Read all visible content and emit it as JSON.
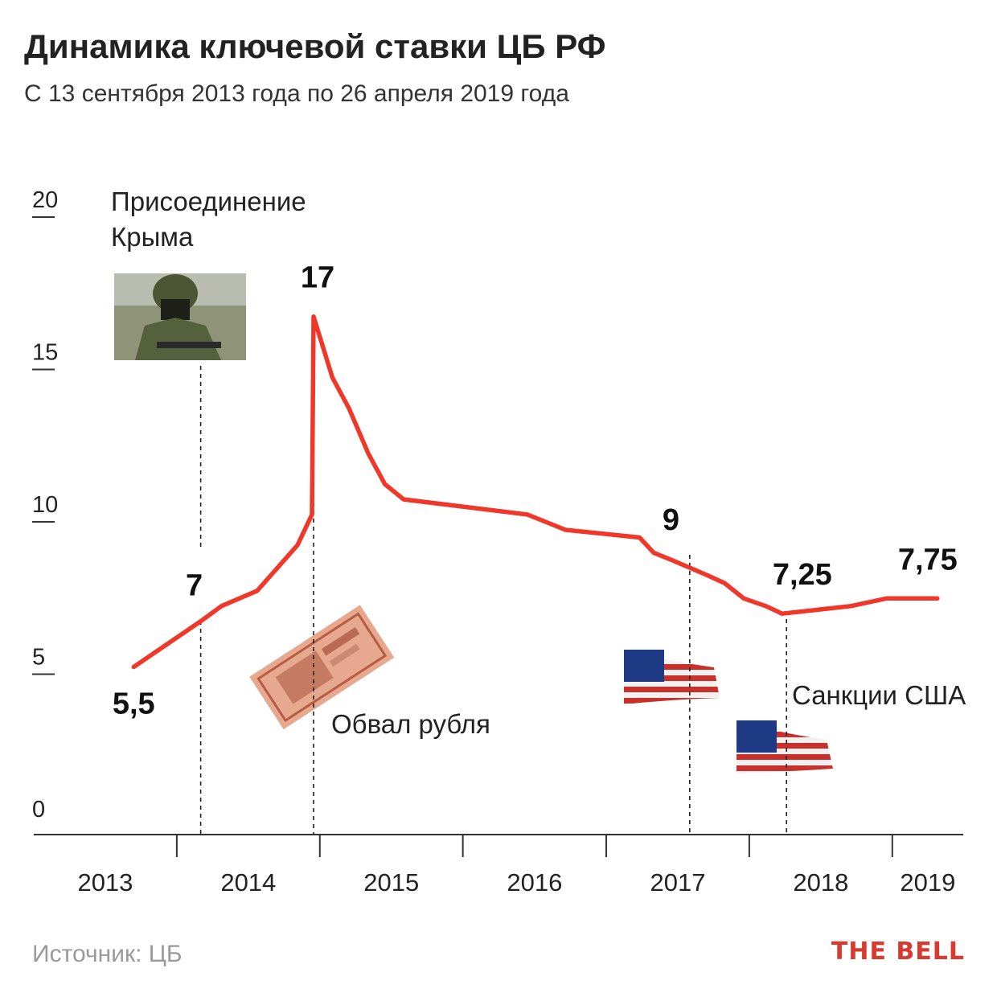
{
  "header": {
    "title": "Динамика ключевой ставки ЦБ РФ",
    "subtitle": "С 13 сентября 2013 года по 26 апреля 2019 года"
  },
  "footer": {
    "source": "Источник: ЦБ",
    "brand": "THE BELL"
  },
  "colors": {
    "line": "#f0382a",
    "brand": "#d73a2f",
    "source": "#9a9a9a"
  },
  "chart_data": {
    "type": "line",
    "title": "Динамика ключевой ставки ЦБ РФ",
    "subtitle": "С 13 сентября 2013 года по 26 апреля 2019 года",
    "xlabel": "",
    "ylabel": "",
    "ylim": [
      0,
      20
    ],
    "yticks": [
      "0",
      "5",
      "10",
      "15",
      "20"
    ],
    "xlim": [
      "2013-01-01",
      "2019-07-01"
    ],
    "xticks": [
      "2013",
      "2014",
      "2015",
      "2016",
      "2017",
      "2018",
      "2019"
    ],
    "grid": false,
    "series": [
      {
        "color": "#f0382a",
        "points": [
          [
            "2013-09-13",
            5.5
          ],
          [
            "2014-03-03",
            7.0
          ],
          [
            "2014-04-25",
            7.5
          ],
          [
            "2014-07-25",
            8.0
          ],
          [
            "2014-11-05",
            9.5
          ],
          [
            "2014-12-12",
            10.5
          ],
          [
            "2014-12-16",
            17.0
          ],
          [
            "2015-02-02",
            15.0
          ],
          [
            "2015-03-16",
            14.0
          ],
          [
            "2015-05-05",
            12.5
          ],
          [
            "2015-06-16",
            11.5
          ],
          [
            "2015-08-03",
            11.0
          ],
          [
            "2016-06-14",
            10.5
          ],
          [
            "2016-09-19",
            10.0
          ],
          [
            "2017-03-27",
            9.75
          ],
          [
            "2017-05-02",
            9.25
          ],
          [
            "2017-06-19",
            9.0
          ],
          [
            "2017-09-18",
            8.5
          ],
          [
            "2017-10-30",
            8.25
          ],
          [
            "2017-12-18",
            7.75
          ],
          [
            "2018-02-12",
            7.5
          ],
          [
            "2018-03-26",
            7.25
          ],
          [
            "2018-09-17",
            7.5
          ],
          [
            "2018-12-17",
            7.75
          ],
          [
            "2019-04-26",
            7.75
          ]
        ]
      }
    ],
    "value_labels": [
      "5,5",
      "7",
      "17",
      "9",
      "7,25",
      "7,75"
    ],
    "annotations": [
      {
        "text_lines": [
          "Присоединение",
          "Крыма"
        ],
        "date": "2014-03-03",
        "image": "soldier-photo"
      },
      {
        "text_lines": [
          "Обвал рубля"
        ],
        "date": "2014-12-16",
        "image": "banknote-5000"
      },
      {
        "text_lines": [
          "Санкции США"
        ],
        "date": "2018-04-06",
        "image": "us-flag"
      },
      {
        "text_lines": [],
        "date": "2017-08-02",
        "image": "us-flag"
      }
    ]
  }
}
